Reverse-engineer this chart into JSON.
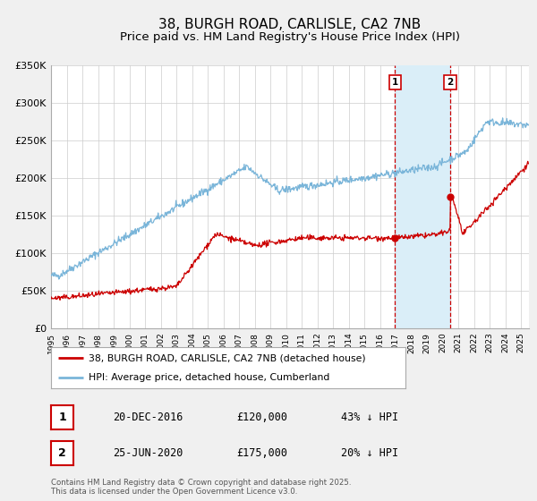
{
  "title": "38, BURGH ROAD, CARLISLE, CA2 7NB",
  "subtitle": "Price paid vs. HM Land Registry's House Price Index (HPI)",
  "ylim": [
    0,
    350000
  ],
  "yticks": [
    0,
    50000,
    100000,
    150000,
    200000,
    250000,
    300000,
    350000
  ],
  "ytick_labels": [
    "£0",
    "£50K",
    "£100K",
    "£150K",
    "£200K",
    "£250K",
    "£300K",
    "£350K"
  ],
  "hpi_color": "#7ab5d9",
  "price_color": "#cc0000",
  "marker1_date": 2016.96,
  "marker2_date": 2020.48,
  "marker1_price": 120000,
  "marker2_price": 175000,
  "vline_color": "#cc0000",
  "shade_color": "#daeef8",
  "legend_label1": "38, BURGH ROAD, CARLISLE, CA2 7NB (detached house)",
  "legend_label2": "HPI: Average price, detached house, Cumberland",
  "annotation1_label": "1",
  "annotation2_label": "2",
  "annotation1_text": "20-DEC-2016",
  "annotation1_price": "£120,000",
  "annotation1_hpi": "43% ↓ HPI",
  "annotation2_text": "25-JUN-2020",
  "annotation2_price": "£175,000",
  "annotation2_hpi": "20% ↓ HPI",
  "footer": "Contains HM Land Registry data © Crown copyright and database right 2025.\nThis data is licensed under the Open Government Licence v3.0.",
  "background_color": "#f0f0f0",
  "plot_background": "#ffffff",
  "title_fontsize": 11,
  "subtitle_fontsize": 9.5
}
